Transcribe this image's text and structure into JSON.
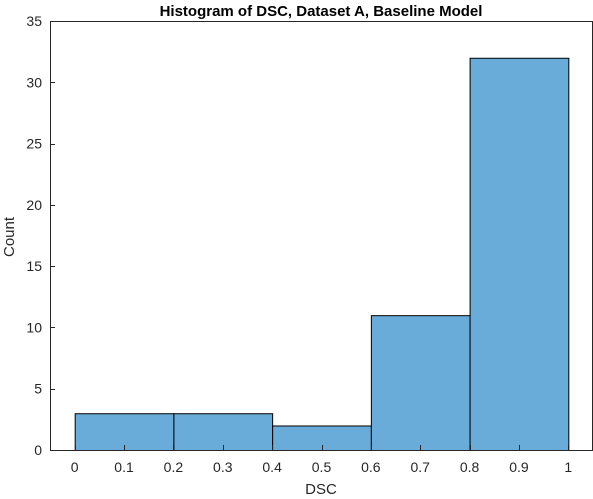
{
  "chart_data": {
    "type": "bar",
    "title": "Histogram of DSC, Dataset A, Baseline Model",
    "xlabel": "DSC",
    "ylabel": "Count",
    "bin_edges": [
      0,
      0.2,
      0.4,
      0.6,
      0.8,
      1.0
    ],
    "values": [
      3,
      3,
      2,
      11,
      32
    ],
    "xlim": [
      -0.05,
      1.05
    ],
    "ylim": [
      0,
      35
    ],
    "xticks": [
      0,
      0.1,
      0.2,
      0.3,
      0.4,
      0.5,
      0.6,
      0.7,
      0.8,
      0.9,
      1
    ],
    "xtick_labels": [
      "0",
      "0.1",
      "0.2",
      "0.3",
      "0.4",
      "0.5",
      "0.6",
      "0.7",
      "0.8",
      "0.9",
      "1"
    ],
    "yticks": [
      0,
      5,
      10,
      15,
      20,
      25,
      30,
      35
    ],
    "ytick_labels": [
      "0",
      "5",
      "10",
      "15",
      "20",
      "25",
      "30",
      "35"
    ],
    "grid": false,
    "bar_color": "#6aacd9",
    "edge_color": "#000000"
  }
}
